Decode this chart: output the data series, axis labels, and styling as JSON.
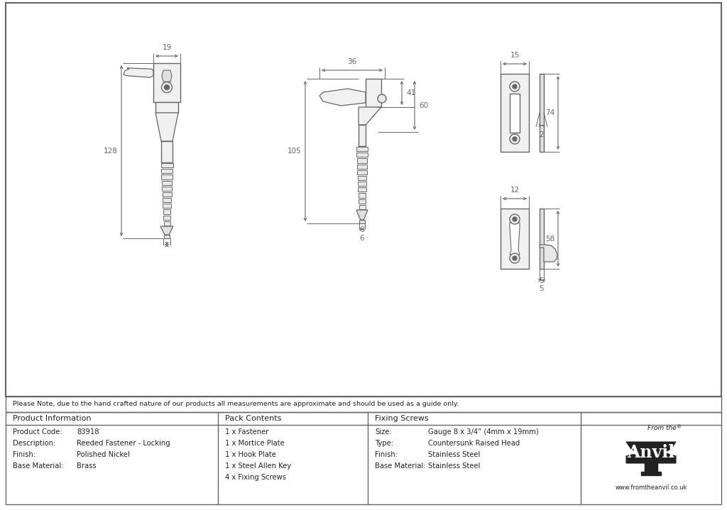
{
  "line_color": "#666666",
  "note": "Please Note, due to the hand crafted nature of our products all measurements are approximate and should be used as a guide only.",
  "product_info": {
    "header": "Product Information",
    "rows": [
      [
        "Product Code:",
        "83918"
      ],
      [
        "Description:",
        "Reeded Fastener - Locking"
      ],
      [
        "Finish:",
        "Polished Nickel"
      ],
      [
        "Base Material:",
        "Brass"
      ]
    ]
  },
  "pack_contents": {
    "header": "Pack Contents",
    "items": [
      "1 x Fastener",
      "1 x Mortice Plate",
      "1 x Hook Plate",
      "1 x Steel Allen Key",
      "4 x Fixing Screws"
    ]
  },
  "fixing_screws": {
    "header": "Fixing Screws",
    "rows": [
      [
        "Size:",
        "Gauge 8 x 3/4” (4mm x 19mm)"
      ],
      [
        "Type:",
        "Countersunk Raised Head"
      ],
      [
        "Finish:",
        "Stainless Steel"
      ],
      [
        "Base Material:",
        "Stainless Steel"
      ]
    ]
  }
}
